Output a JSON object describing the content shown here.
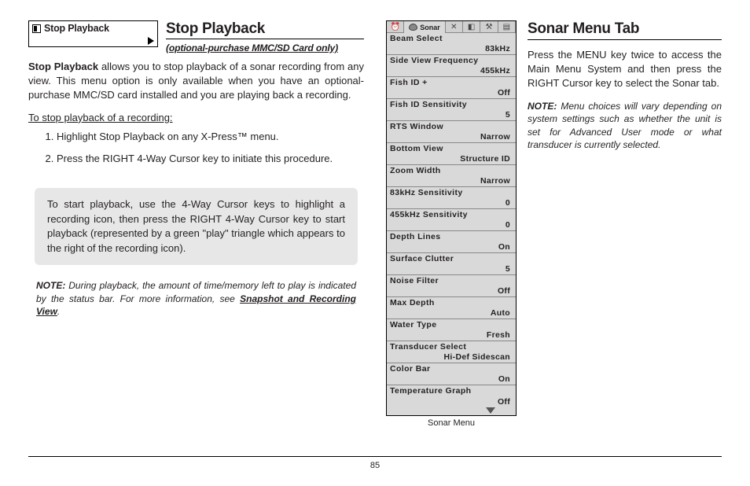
{
  "page_number": "85",
  "left": {
    "menu_box_label": "Stop Playback",
    "title": "Stop Playback",
    "subtitle": "(optional-purchase MMC/SD Card only)",
    "body_lead": "Stop Playback",
    "body_text": " allows you to stop playback of a sonar recording from any view. This menu option is only available when you have an optional-purchase MMC/SD card installed and you are playing back a recording.",
    "proc_title": "To stop playback of a recording:",
    "step1": "Highlight Stop Playback on any X-Press™ menu.",
    "step2": "Press the RIGHT 4-Way Cursor key to initiate this procedure.",
    "callout": "To start playback, use the 4-Way Cursor keys to highlight a recording icon, then press the RIGHT 4-Way Cursor key to start playback (represented by a green \"play\" triangle which appears to the right of the recording icon).",
    "note_label": "NOTE:",
    "note_text": "  During playback, the amount of time/memory left to play is indicated by the status bar. For more information, see ",
    "note_ref": "Snapshot and Recording View"
  },
  "right": {
    "title": "Sonar Menu Tab",
    "body": "Press the MENU key twice to access the Main Menu System and then press the RIGHT Cursor key to select the Sonar tab.",
    "note_label": "NOTE:",
    "note_text": " Menu choices will vary depending on system settings such as whether the unit is set for Advanced User mode or what transducer is currently selected.",
    "menu_caption": "Sonar Menu",
    "tab_label": "Sonar",
    "items": [
      {
        "label": "Beam Select",
        "value": "83kHz"
      },
      {
        "label": "Side View Frequency",
        "value": "455kHz"
      },
      {
        "label": "Fish ID +",
        "value": "Off"
      },
      {
        "label": "Fish ID Sensitivity",
        "value": "5"
      },
      {
        "label": "RTS Window",
        "value": "Narrow"
      },
      {
        "label": "Bottom View",
        "value": "Structure ID"
      },
      {
        "label": "Zoom Width",
        "value": "Narrow"
      },
      {
        "label": "83kHz Sensitivity",
        "value": "0"
      },
      {
        "label": "455kHz Sensitivity",
        "value": "0"
      },
      {
        "label": "Depth Lines",
        "value": "On"
      },
      {
        "label": "Surface Clutter",
        "value": "5"
      },
      {
        "label": "Noise Filter",
        "value": "Off"
      },
      {
        "label": "Max Depth",
        "value": "Auto"
      },
      {
        "label": "Water Type",
        "value": "Fresh"
      },
      {
        "label": "Transducer Select",
        "value": "Hi-Def Sidescan"
      },
      {
        "label": "Color Bar",
        "value": "On"
      },
      {
        "label": "Temperature Graph",
        "value": "Off"
      }
    ]
  }
}
